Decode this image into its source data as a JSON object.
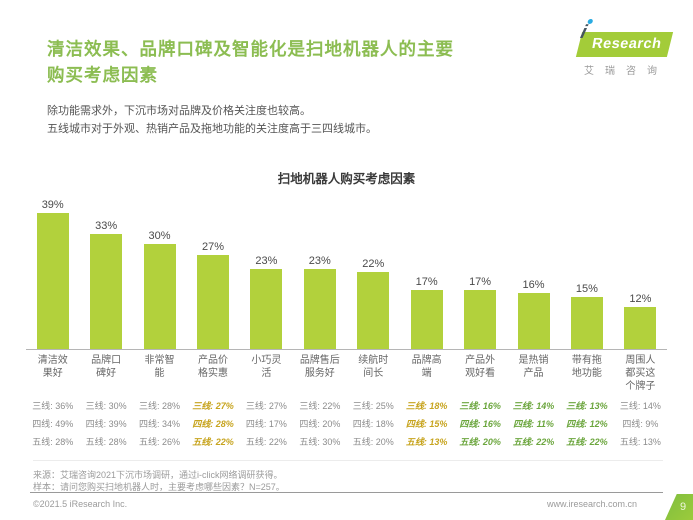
{
  "header": {
    "title_line1": "清洁效果、品牌口碑及智能化是扫地机器人的主要",
    "title_line2": "购买考虑因素",
    "subtitle_line1": "除功能需求外，下沉市场对品牌及价格关注度也较高。",
    "subtitle_line2": "五线城市对于外观、热销产品及拖地功能的关注度高于三四线城市。"
  },
  "logo": {
    "i_letter": "i",
    "brand": "Research",
    "cn_name": "艾瑞咨询",
    "green": "#a3cc39",
    "dot_blue": "#29abe2"
  },
  "chart_data": {
    "type": "bar",
    "title": "扫地机器人购买考虑因素",
    "bar_color": "#b2d13c",
    "value_suffix": "%",
    "ylim": [
      0,
      45
    ],
    "grid": false,
    "categories": [
      "清洁效\n果好",
      "品牌口\n碑好",
      "非常智\n能",
      "产品价\n格实惠",
      "小巧灵\n活",
      "品牌售后\n服务好",
      "续航时\n间长",
      "品牌高\n端",
      "产品外\n观好看",
      "是热销\n产品",
      "带有拖\n地功能",
      "周围人\n都买这\n个牌子"
    ],
    "values": [
      39,
      33,
      30,
      27,
      23,
      23,
      22,
      17,
      17,
      16,
      15,
      12
    ],
    "tier_rows": [
      "三线",
      "四线",
      "五线"
    ],
    "tier_columns": [
      {
        "values": [
          36,
          49,
          28
        ],
        "style": "normal"
      },
      {
        "values": [
          30,
          39,
          28
        ],
        "style": "normal"
      },
      {
        "values": [
          28,
          34,
          26
        ],
        "style": "normal"
      },
      {
        "values": [
          27,
          28,
          22
        ],
        "style": "gold"
      },
      {
        "values": [
          27,
          17,
          22
        ],
        "style": "normal"
      },
      {
        "values": [
          22,
          20,
          30
        ],
        "style": "normal"
      },
      {
        "values": [
          25,
          18,
          20
        ],
        "style": "normal"
      },
      {
        "values": [
          18,
          15,
          13
        ],
        "style": "gold"
      },
      {
        "values": [
          16,
          16,
          20
        ],
        "style": "green"
      },
      {
        "values": [
          14,
          11,
          22
        ],
        "style": "green"
      },
      {
        "values": [
          13,
          12,
          22
        ],
        "style": "green"
      },
      {
        "values": [
          14,
          9,
          13
        ],
        "style": "normal"
      }
    ]
  },
  "footer": {
    "source_line1": "来源：艾瑞咨询2021下沉市场调研，通过i-click网络调研获得。",
    "source_line2": "样本：请问您购买扫地机器人时，主要考虑哪些因素？N=257。",
    "copyright": "©2021.5 iResearch Inc.",
    "website": "www.iresearch.com.cn",
    "page_number": "9"
  }
}
